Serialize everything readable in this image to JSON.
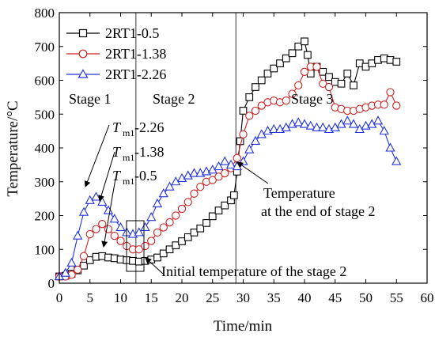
{
  "chart_data": {
    "type": "line",
    "xlabel": "Time/min",
    "ylabel": "Temperature/°C",
    "xlim": [
      0,
      60
    ],
    "ylim": [
      0,
      800
    ],
    "xticks": [
      0,
      5,
      10,
      15,
      20,
      25,
      30,
      35,
      40,
      45,
      50,
      55,
      60
    ],
    "yticks": [
      0,
      100,
      200,
      300,
      400,
      500,
      600,
      700,
      800
    ],
    "grid": false,
    "legend_position": "top-left",
    "stage_boundaries": [
      12.5,
      28.8
    ],
    "series": [
      {
        "name": "2RT1-0.5",
        "color": "#000000",
        "marker": "square",
        "x": [
          0,
          1,
          2,
          3,
          4,
          5,
          6,
          7,
          8,
          9,
          10,
          11,
          12,
          13,
          14,
          15,
          16,
          17,
          18,
          19,
          20,
          21,
          22,
          23,
          24,
          25,
          26,
          27,
          28,
          28.5,
          29,
          29.5,
          30,
          31,
          32,
          33,
          34,
          35,
          36,
          37,
          38,
          39,
          40,
          40.5,
          41,
          42,
          43,
          44,
          45,
          46,
          47,
          48,
          49,
          50,
          51,
          52,
          53,
          54,
          55
        ],
        "y": [
          20,
          22,
          28,
          38,
          52,
          68,
          78,
          80,
          76,
          74,
          70,
          68,
          66,
          64,
          66,
          70,
          76,
          88,
          100,
          112,
          124,
          136,
          150,
          162,
          178,
          198,
          215,
          230,
          245,
          260,
          330,
          420,
          510,
          550,
          580,
          600,
          620,
          635,
          650,
          665,
          680,
          700,
          715,
          675,
          620,
          640,
          625,
          610,
          595,
          590,
          620,
          585,
          650,
          640,
          650,
          660,
          665,
          660,
          655
        ]
      },
      {
        "name": "2RT1-1.38",
        "color": "#cc2222",
        "marker": "circle",
        "x": [
          0,
          1,
          2,
          3,
          4,
          5,
          6,
          7,
          8,
          9,
          10,
          11,
          12,
          13,
          14,
          15,
          16,
          17,
          18,
          19,
          20,
          21,
          22,
          23,
          24,
          25,
          26,
          27,
          28,
          29,
          30,
          31,
          32,
          33,
          34,
          35,
          36,
          37,
          38,
          39,
          40,
          41,
          42,
          43,
          44,
          45,
          46,
          47,
          48,
          49,
          50,
          51,
          52,
          53,
          54,
          55
        ],
        "y": [
          20,
          20,
          25,
          40,
          80,
          145,
          160,
          175,
          160,
          140,
          125,
          110,
          100,
          100,
          110,
          125,
          150,
          165,
          180,
          200,
          220,
          240,
          265,
          285,
          300,
          305,
          315,
          325,
          340,
          370,
          440,
          495,
          510,
          525,
          535,
          540,
          535,
          540,
          560,
          585,
          625,
          640,
          640,
          590,
          580,
          520,
          515,
          510,
          510,
          515,
          520,
          525,
          528,
          528,
          565,
          525
        ]
      },
      {
        "name": "2RT1-2.26",
        "color": "#2233dd",
        "marker": "triangle",
        "x": [
          0,
          1,
          2,
          3,
          4,
          5,
          6,
          7,
          8,
          9,
          10,
          11,
          12,
          13,
          14,
          15,
          16,
          17,
          18,
          19,
          20,
          21,
          22,
          23,
          24,
          25,
          26,
          27,
          28,
          29,
          30,
          31,
          32,
          33,
          34,
          35,
          36,
          37,
          38,
          39,
          40,
          41,
          42,
          43,
          44,
          45,
          46,
          47,
          48,
          49,
          50,
          51,
          52,
          53,
          54,
          55
        ],
        "y": [
          20,
          30,
          60,
          140,
          210,
          245,
          255,
          240,
          215,
          190,
          165,
          150,
          145,
          150,
          165,
          195,
          235,
          265,
          285,
          300,
          310,
          318,
          325,
          325,
          330,
          335,
          345,
          360,
          350,
          345,
          360,
          395,
          420,
          440,
          450,
          455,
          455,
          460,
          470,
          475,
          470,
          465,
          460,
          460,
          455,
          460,
          470,
          480,
          470,
          455,
          465,
          470,
          480,
          450,
          400,
          360
        ]
      }
    ],
    "annotations": {
      "stage1": "Stage 1",
      "stage2": "Stage 2",
      "stage3": "Stage 3",
      "tm_symbol": "T",
      "tm_sub": "m1",
      "tm_226": "-2.26",
      "tm_138": "-1.38",
      "tm_05": "-0.5",
      "end_temp_line1": "Temperature",
      "end_temp_line2": "at the end of stage 2",
      "initial_temp": "Initial temperature of the stage 2"
    }
  }
}
